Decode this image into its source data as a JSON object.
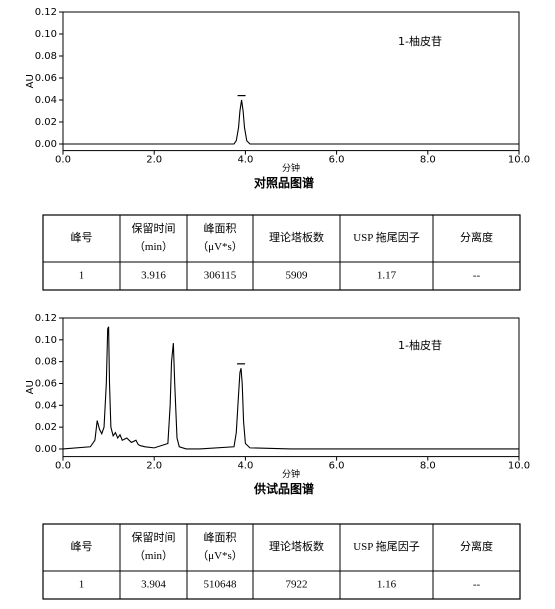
{
  "chart_data": [
    {
      "type": "line",
      "title": "对照品图谱",
      "xlabel": "分钟",
      "ylabel": "AU",
      "annotation": "1-柚皮苷",
      "color": "#000000",
      "x": [
        0,
        3.0,
        3.75,
        3.8,
        3.85,
        3.88,
        3.916,
        3.95,
        3.98,
        4.03,
        4.1,
        5,
        10
      ],
      "values": [
        0,
        0,
        0,
        0.003,
        0.015,
        0.03,
        0.04,
        0.03,
        0.015,
        0.003,
        0,
        0,
        0
      ],
      "markers": [
        {
          "x": 3.916,
          "y": 0.044
        }
      ],
      "xlim": [
        0,
        10
      ],
      "ylim": [
        -0.006,
        0.12
      ],
      "xticks": [
        {
          "value": 0,
          "label": "0.0"
        },
        {
          "value": 2,
          "label": "2.0"
        },
        {
          "value": 4,
          "label": "4.0"
        },
        {
          "value": 6,
          "label": "6.0"
        },
        {
          "value": 8,
          "label": "8.0"
        },
        {
          "value": 10,
          "label": "10.0"
        }
      ],
      "yticks": [
        {
          "value": 0,
          "label": "0.00"
        },
        {
          "value": 0.02,
          "label": "0.02"
        },
        {
          "value": 0.04,
          "label": "0.04"
        },
        {
          "value": 0.06,
          "label": "0.06"
        },
        {
          "value": 0.08,
          "label": "0.08"
        },
        {
          "value": 0.1,
          "label": "0.10"
        },
        {
          "value": 0.12,
          "label": "0.12"
        }
      ]
    },
    {
      "type": "line",
      "title": "供试品图谱",
      "xlabel": "分钟",
      "ylabel": "AU",
      "annotation": "1-柚皮苷",
      "color": "#000000",
      "x": [
        0,
        0.6,
        0.7,
        0.75,
        0.8,
        0.85,
        0.9,
        0.95,
        0.98,
        1.0,
        1.02,
        1.05,
        1.1,
        1.15,
        1.2,
        1.25,
        1.3,
        1.4,
        1.5,
        1.6,
        1.65,
        1.7,
        1.8,
        2.0,
        2.3,
        2.35,
        2.38,
        2.42,
        2.45,
        2.5,
        2.55,
        2.7,
        3.0,
        3.75,
        3.8,
        3.85,
        3.88,
        3.904,
        3.93,
        3.96,
        4.0,
        4.1,
        5,
        10
      ],
      "values": [
        0,
        0.002,
        0.008,
        0.026,
        0.018,
        0.014,
        0.02,
        0.06,
        0.11,
        0.112,
        0.06,
        0.02,
        0.012,
        0.015,
        0.01,
        0.013,
        0.008,
        0.01,
        0.006,
        0.008,
        0.004,
        0.003,
        0.002,
        0.001,
        0.005,
        0.04,
        0.08,
        0.097,
        0.06,
        0.01,
        0.002,
        0,
        0,
        0.002,
        0.015,
        0.05,
        0.07,
        0.074,
        0.06,
        0.025,
        0.005,
        0.001,
        0,
        0
      ],
      "markers": [
        {
          "x": 3.904,
          "y": 0.078
        }
      ],
      "xlim": [
        0,
        10
      ],
      "ylim": [
        -0.007,
        0.12
      ],
      "xticks": [
        {
          "value": 0,
          "label": "0.0"
        },
        {
          "value": 2,
          "label": "2.0"
        },
        {
          "value": 4,
          "label": "4.0"
        },
        {
          "value": 6,
          "label": "6.0"
        },
        {
          "value": 8,
          "label": "8.0"
        },
        {
          "value": 10,
          "label": "10.0"
        }
      ],
      "yticks": [
        {
          "value": 0,
          "label": "0.00"
        },
        {
          "value": 0.02,
          "label": "0.02"
        },
        {
          "value": 0.04,
          "label": "0.04"
        },
        {
          "value": 0.06,
          "label": "0.06"
        },
        {
          "value": 0.08,
          "label": "0.08"
        },
        {
          "value": 0.1,
          "label": "0.10"
        },
        {
          "value": 0.12,
          "label": "0.12"
        }
      ]
    }
  ],
  "tables": [
    {
      "header": [
        [
          "峰号"
        ],
        [
          "保留时间",
          "（min）"
        ],
        [
          "峰面积",
          "（μV*s）"
        ],
        [
          "理论塔板数"
        ],
        [
          "USP 拖尾因子"
        ],
        [
          "分离度"
        ]
      ],
      "rows": [
        [
          "1",
          "3.916",
          "306115",
          "5909",
          "1.17",
          "--"
        ]
      ]
    },
    {
      "header": [
        [
          "峰号"
        ],
        [
          "保留时间",
          "（min）"
        ],
        [
          "峰面积",
          "（μV*s）"
        ],
        [
          "理论塔板数"
        ],
        [
          "USP 拖尾因子"
        ],
        [
          "分离度"
        ]
      ],
      "rows": [
        [
          "1",
          "3.904",
          "510648",
          "7922",
          "1.16",
          "--"
        ]
      ]
    }
  ]
}
